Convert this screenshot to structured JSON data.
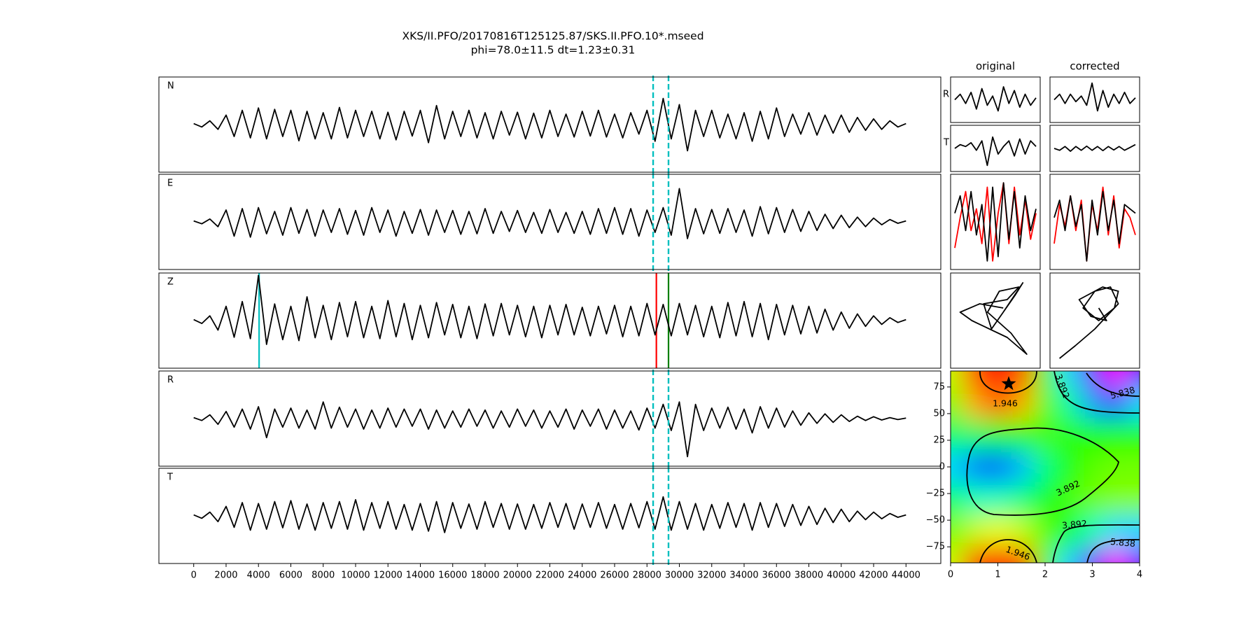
{
  "chart_data": [
    {
      "type": "line",
      "title": "XKS/II.PFO/20170816T125125.87/SKS.II.PFO.10*.mseed",
      "subtitle": "phi=78.0±11.5 dt=1.23±0.31",
      "x": [
        0,
        500,
        1000,
        1500,
        2000,
        2500,
        3000,
        3500,
        4000,
        4500,
        5000,
        5500,
        6000,
        6500,
        7000,
        7500,
        8000,
        8500,
        9000,
        9500,
        10000,
        10500,
        11000,
        11500,
        12000,
        12500,
        13000,
        13500,
        14000,
        14500,
        15000,
        15500,
        16000,
        16500,
        17000,
        17500,
        18000,
        18500,
        19000,
        19500,
        20000,
        20500,
        21000,
        21500,
        22000,
        22500,
        23000,
        23500,
        24000,
        24500,
        25000,
        25500,
        26000,
        26500,
        27000,
        27500,
        28000,
        28500,
        29000,
        29500,
        30000,
        30500,
        31000,
        31500,
        32000,
        32500,
        33000,
        33500,
        34000,
        34500,
        35000,
        35500,
        36000,
        36500,
        37000,
        37500,
        38000,
        38500,
        39000,
        39500,
        40000,
        40500,
        41000,
        41500,
        42000,
        42500,
        43000,
        43500,
        44000
      ],
      "xlim": [
        -2150,
        46150
      ],
      "xticks": [
        0,
        2000,
        4000,
        6000,
        8000,
        10000,
        12000,
        14000,
        16000,
        18000,
        20000,
        22000,
        24000,
        26000,
        28000,
        30000,
        32000,
        34000,
        36000,
        38000,
        40000,
        42000,
        44000
      ],
      "ylim": [
        -1,
        1
      ],
      "window": [
        28380,
        29330
      ],
      "window_color": "#00bfbf",
      "series": [
        {
          "name": "N",
          "color": "#000000",
          "show_window": true,
          "values": [
            0.02,
            -0.05,
            0.08,
            -0.1,
            0.2,
            -0.25,
            0.3,
            -0.28,
            0.35,
            -0.3,
            0.32,
            -0.25,
            0.3,
            -0.34,
            0.28,
            -0.3,
            0.25,
            -0.3,
            0.36,
            -0.28,
            0.3,
            -0.25,
            0.28,
            -0.3,
            0.26,
            -0.32,
            0.28,
            -0.24,
            0.3,
            -0.38,
            0.4,
            -0.3,
            0.28,
            -0.25,
            0.3,
            -0.28,
            0.25,
            -0.3,
            0.28,
            -0.22,
            0.26,
            -0.3,
            0.24,
            -0.28,
            0.3,
            -0.25,
            0.22,
            -0.26,
            0.28,
            -0.24,
            0.3,
            -0.26,
            0.22,
            -0.28,
            0.25,
            -0.2,
            0.3,
            -0.35,
            0.55,
            -0.3,
            0.42,
            -0.55,
            0.3,
            -0.25,
            0.3,
            -0.28,
            0.22,
            -0.3,
            0.25,
            -0.35,
            0.28,
            -0.3,
            0.35,
            -0.25,
            0.22,
            -0.2,
            0.25,
            -0.22,
            0.2,
            -0.18,
            0.2,
            -0.16,
            0.15,
            -0.12,
            0.12,
            -0.1,
            0.08,
            -0.05,
            0.02
          ]
        },
        {
          "name": "E",
          "color": "#000000",
          "show_window": true,
          "values": [
            0.02,
            -0.04,
            0.06,
            -0.1,
            0.25,
            -0.3,
            0.28,
            -0.32,
            0.3,
            -0.25,
            0.22,
            -0.28,
            0.3,
            -0.24,
            0.26,
            -0.3,
            0.25,
            -0.22,
            0.28,
            -0.26,
            0.24,
            -0.28,
            0.3,
            -0.22,
            0.25,
            -0.3,
            0.22,
            -0.24,
            0.26,
            -0.28,
            0.25,
            -0.22,
            0.24,
            -0.26,
            0.22,
            -0.25,
            0.28,
            -0.24,
            0.22,
            -0.2,
            0.24,
            -0.22,
            0.2,
            -0.24,
            0.26,
            -0.22,
            0.2,
            -0.24,
            0.22,
            -0.26,
            0.28,
            -0.24,
            0.3,
            -0.26,
            0.28,
            -0.3,
            0.25,
            -0.22,
            0.3,
            -0.28,
            0.7,
            -0.35,
            0.28,
            -0.25,
            0.26,
            -0.24,
            0.28,
            -0.22,
            0.25,
            -0.3,
            0.32,
            -0.25,
            0.3,
            -0.22,
            0.26,
            -0.2,
            0.22,
            -0.18,
            0.16,
            -0.14,
            0.14,
            -0.12,
            0.1,
            -0.1,
            0.08,
            -0.06,
            0.05,
            -0.03,
            0.02
          ]
        },
        {
          "name": "Z",
          "color": "#000000",
          "show_window": false,
          "picks": [
            {
              "x": 4040,
              "color": "#00bfbf"
            },
            {
              "x": 28580,
              "color": "#ff0000"
            },
            {
              "x": 29330,
              "color": "#008000"
            }
          ],
          "values": [
            0.02,
            -0.06,
            0.1,
            -0.2,
            0.3,
            -0.35,
            0.4,
            -0.38,
            0.95,
            -0.5,
            0.35,
            -0.4,
            0.3,
            -0.42,
            0.5,
            -0.36,
            0.32,
            -0.4,
            0.38,
            -0.34,
            0.4,
            -0.36,
            0.3,
            -0.38,
            0.42,
            -0.34,
            0.36,
            -0.4,
            0.32,
            -0.36,
            0.38,
            -0.3,
            0.34,
            -0.36,
            0.3,
            -0.38,
            0.35,
            -0.32,
            0.36,
            -0.3,
            0.32,
            -0.34,
            0.3,
            -0.36,
            0.32,
            -0.3,
            0.34,
            -0.3,
            0.28,
            -0.32,
            0.3,
            -0.28,
            0.32,
            -0.34,
            0.3,
            -0.32,
            0.36,
            -0.3,
            0.34,
            -0.32,
            0.36,
            -0.3,
            0.32,
            -0.34,
            0.3,
            -0.36,
            0.38,
            -0.32,
            0.4,
            -0.34,
            0.36,
            -0.4,
            0.34,
            -0.3,
            0.32,
            -0.28,
            0.3,
            -0.26,
            0.24,
            -0.2,
            0.18,
            -0.16,
            0.14,
            -0.12,
            0.1,
            -0.08,
            0.06,
            -0.04,
            0.02
          ]
        },
        {
          "name": "R",
          "color": "#000000",
          "show_window": true,
          "values": [
            0.02,
            -0.04,
            0.08,
            -0.12,
            0.15,
            -0.18,
            0.2,
            -0.22,
            0.25,
            -0.4,
            0.2,
            -0.18,
            0.22,
            -0.2,
            0.18,
            -0.22,
            0.35,
            -0.2,
            0.24,
            -0.18,
            0.2,
            -0.22,
            0.18,
            -0.2,
            0.22,
            -0.18,
            0.2,
            -0.16,
            0.2,
            -0.22,
            0.18,
            -0.2,
            0.16,
            -0.18,
            0.2,
            -0.16,
            0.18,
            -0.2,
            0.16,
            -0.18,
            0.2,
            -0.16,
            0.18,
            -0.2,
            0.16,
            -0.18,
            0.2,
            -0.22,
            0.18,
            -0.16,
            0.2,
            -0.22,
            0.18,
            -0.2,
            0.16,
            -0.24,
            0.22,
            -0.2,
            0.3,
            -0.25,
            0.35,
            -0.8,
            0.3,
            -0.25,
            0.22,
            -0.2,
            0.24,
            -0.22,
            0.2,
            -0.3,
            0.25,
            -0.2,
            0.22,
            -0.18,
            0.16,
            -0.14,
            0.12,
            -0.1,
            0.1,
            -0.08,
            0.08,
            -0.06,
            0.05,
            -0.04,
            0.04,
            -0.03,
            0.02,
            -0.02,
            0.01
          ]
        },
        {
          "name": "T",
          "color": "#000000",
          "show_window": true,
          "values": [
            0.02,
            -0.05,
            0.08,
            -0.12,
            0.2,
            -0.24,
            0.28,
            -0.3,
            0.26,
            -0.28,
            0.3,
            -0.25,
            0.32,
            -0.28,
            0.25,
            -0.3,
            0.28,
            -0.26,
            0.3,
            -0.28,
            0.34,
            -0.3,
            0.28,
            -0.26,
            0.3,
            -0.28,
            0.24,
            -0.3,
            0.26,
            -0.32,
            0.3,
            -0.35,
            0.28,
            -0.26,
            0.25,
            -0.28,
            0.3,
            -0.24,
            0.26,
            -0.28,
            0.25,
            -0.28,
            0.24,
            -0.26,
            0.28,
            -0.24,
            0.26,
            -0.28,
            0.25,
            -0.24,
            0.28,
            -0.26,
            0.24,
            -0.28,
            0.26,
            -0.25,
            0.3,
            -0.28,
            0.4,
            -0.3,
            0.3,
            -0.28,
            0.26,
            -0.3,
            0.24,
            -0.26,
            0.28,
            -0.24,
            0.26,
            -0.3,
            0.28,
            -0.24,
            0.26,
            -0.22,
            0.24,
            -0.2,
            0.2,
            -0.18,
            0.16,
            -0.14,
            0.14,
            -0.12,
            0.1,
            -0.08,
            0.08,
            -0.06,
            0.05,
            -0.03,
            0.02
          ]
        }
      ]
    },
    {
      "type": "waveform-panel",
      "title": "original",
      "traces": [
        {
          "name": "R",
          "color": "#000000",
          "values": [
            0,
            0.3,
            -0.2,
            0.4,
            -0.5,
            0.6,
            -0.3,
            0.2,
            -0.6,
            0.7,
            -0.2,
            0.5,
            -0.4,
            0.3,
            -0.3,
            0.1
          ]
        },
        {
          "name": "T",
          "color": "#000000",
          "values": [
            0,
            0.2,
            0.1,
            0.3,
            -0.1,
            0.4,
            -0.9,
            0.6,
            -0.3,
            0.1,
            0.4,
            -0.4,
            0.5,
            -0.3,
            0.4,
            0.1
          ]
        }
      ],
      "components": [
        {
          "color": "#ff0000",
          "values": [
            -0.6,
            0.1,
            0.7,
            -0.2,
            0.3,
            -0.5,
            0.8,
            -0.9,
            0.2,
            0.9,
            -0.5,
            0.8,
            -0.3,
            0.5,
            -0.4,
            0.2
          ]
        },
        {
          "color": "#000000",
          "values": [
            0.2,
            0.6,
            -0.2,
            0.7,
            -0.3,
            0.4,
            -0.9,
            0.8,
            -0.8,
            0.9,
            -0.4,
            0.7,
            -0.6,
            0.6,
            -0.2,
            0.3
          ]
        }
      ],
      "particle_motion": {
        "color": "#000000",
        "x": [
          0.2,
          -0.4,
          -0.9,
          -0.6,
          0.3,
          0.8,
          0.4,
          -0.2,
          0.1,
          0.6,
          0.3,
          -0.3,
          -0.1,
          0.5,
          0.7,
          0.2
        ],
        "y": [
          0.3,
          0.4,
          0.2,
          0.0,
          -0.4,
          -0.8,
          -0.3,
          0.2,
          0.7,
          0.8,
          0.5,
          0.4,
          -0.2,
          0.6,
          0.9,
          0.2
        ]
      }
    },
    {
      "type": "waveform-panel",
      "title": "corrected",
      "traces": [
        {
          "color": "#000000",
          "values": [
            0,
            0.3,
            -0.2,
            0.3,
            -0.1,
            0.2,
            -0.3,
            0.9,
            -0.6,
            0.5,
            -0.4,
            0.3,
            -0.2,
            0.4,
            -0.2,
            0.1
          ]
        },
        {
          "color": "#000000",
          "values": [
            0,
            -0.1,
            0.1,
            -0.15,
            0.1,
            -0.1,
            0.12,
            -0.1,
            0.1,
            -0.12,
            0.1,
            -0.08,
            0.1,
            -0.1,
            0.05,
            0.2
          ]
        }
      ],
      "components": [
        {
          "color": "#ff0000",
          "values": [
            -0.5,
            0.4,
            -0.1,
            0.6,
            -0.2,
            0.5,
            -0.9,
            0.4,
            -0.2,
            0.8,
            -0.3,
            0.6,
            -0.6,
            0.3,
            0.1,
            -0.3
          ]
        },
        {
          "color": "#000000",
          "values": [
            0.1,
            0.5,
            -0.2,
            0.6,
            -0.1,
            0.4,
            -0.9,
            0.5,
            -0.3,
            0.7,
            -0.2,
            0.5,
            -0.5,
            0.4,
            0.3,
            0.2
          ]
        }
      ],
      "particle_motion": {
        "color": "#000000",
        "x": [
          -0.9,
          -0.5,
          0.0,
          0.3,
          0.6,
          0.4,
          0.0,
          -0.3,
          0.1,
          0.5,
          0.6,
          0.2,
          -0.4,
          -0.1,
          0.3,
          0.1
        ],
        "y": [
          -0.9,
          -0.6,
          -0.2,
          0.1,
          0.4,
          0.8,
          0.7,
          0.3,
          0.0,
          0.3,
          0.7,
          0.8,
          0.5,
          0.1,
          0.0,
          0.3
        ]
      }
    },
    {
      "type": "contour",
      "x": [
        0,
        0.5,
        1,
        1.5,
        2,
        2.5,
        3,
        3.5,
        4
      ],
      "y": [
        90,
        60,
        30,
        0,
        -30,
        -60,
        -90
      ],
      "z": [
        [
          3.0,
          1.5,
          0.5,
          1.5,
          3.5,
          5.0,
          6.0,
          6.5,
          6.0
        ],
        [
          3.3,
          2.2,
          1.6,
          2.2,
          3.5,
          4.5,
          5.2,
          5.5,
          5.0
        ],
        [
          4.3,
          4.3,
          4.0,
          3.8,
          3.6,
          3.7,
          3.8,
          3.8,
          3.8
        ],
        [
          5.0,
          5.3,
          5.4,
          5.1,
          4.4,
          3.8,
          3.5,
          3.4,
          3.4
        ],
        [
          4.3,
          4.6,
          4.6,
          4.4,
          3.9,
          3.6,
          3.4,
          3.3,
          3.3
        ],
        [
          3.4,
          3.0,
          2.8,
          3.0,
          3.5,
          4.0,
          4.6,
          5.0,
          5.0
        ],
        [
          3.0,
          1.5,
          0.5,
          1.5,
          3.5,
          5.0,
          6.0,
          6.5,
          6.0
        ]
      ],
      "xlim": [
        0,
        4
      ],
      "ylim": [
        -90,
        90
      ],
      "xticks": [
        0,
        1,
        2,
        3,
        4
      ],
      "yticks": [
        {
          "value": -75,
          "label": "−75"
        },
        {
          "value": -50,
          "label": "−50"
        },
        {
          "value": -25,
          "label": "−25"
        },
        0,
        25,
        50,
        75
      ],
      "levels": [
        1.946,
        3.892,
        5.838
      ],
      "star": {
        "x": 1.23,
        "y": 78
      }
    }
  ]
}
